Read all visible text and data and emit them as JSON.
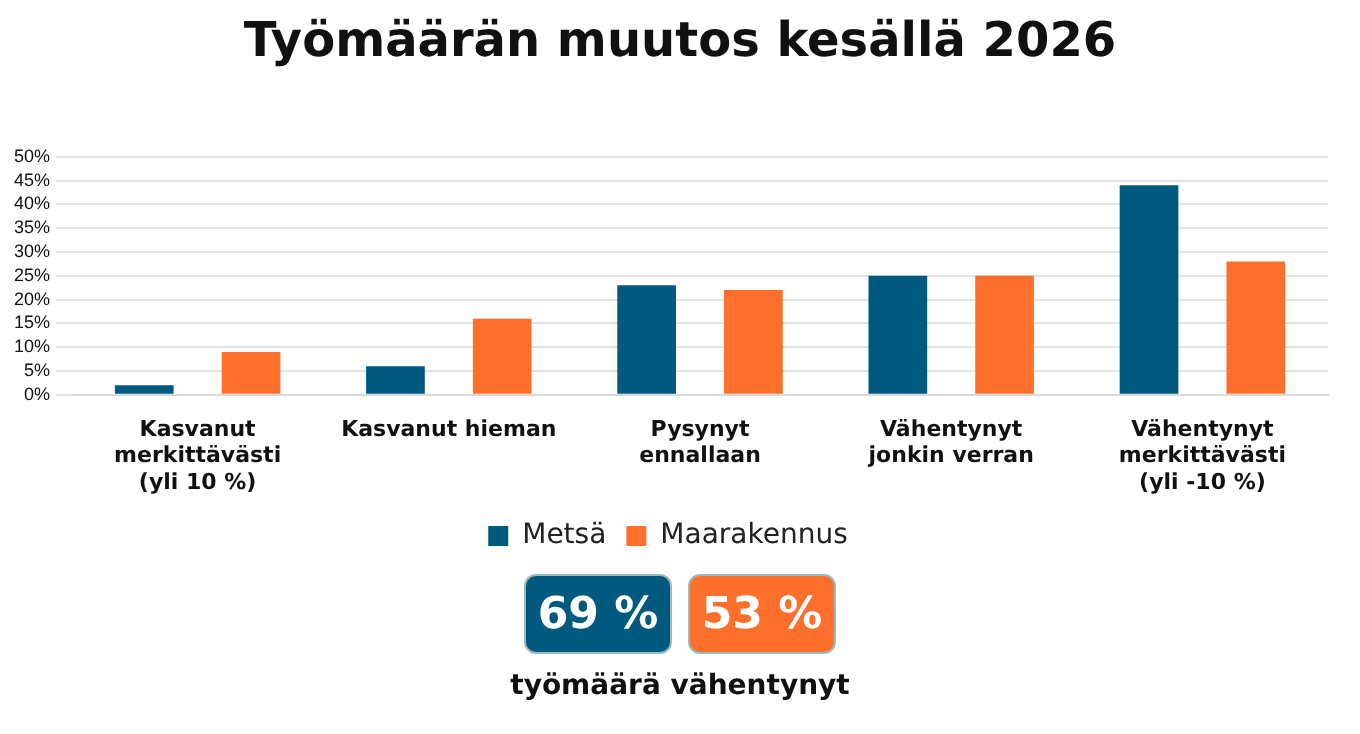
{
  "chart_data": {
    "type": "bar",
    "title": "Työmäärän muutos kesällä 2026",
    "categories": [
      "Kasvanut merkittävästi (yli 10 %)",
      "Kasvanut hieman",
      "Pysynyt ennallaan",
      "Vähentynyt jonkin verran",
      "Vähentynyt merkittävästi (yli -10 %)"
    ],
    "series": [
      {
        "name": "Metsä",
        "color": "#005a80",
        "values": [
          2,
          6,
          23,
          25,
          44
        ]
      },
      {
        "name": "Maarakennus",
        "color": "#ff6f2c",
        "values": [
          9,
          16,
          22,
          25,
          28
        ]
      }
    ],
    "ylim": [
      0,
      50
    ],
    "yticks": [
      {
        "value": 0,
        "label": "0%"
      },
      {
        "value": 5,
        "label": "5%"
      },
      {
        "value": 10,
        "label": "10%"
      },
      {
        "value": 15,
        "label": "15%"
      },
      {
        "value": 20,
        "label": "20%"
      },
      {
        "value": 25,
        "label": "25%"
      },
      {
        "value": 30,
        "label": "30%"
      },
      {
        "value": 35,
        "label": "35%"
      },
      {
        "value": 40,
        "label": "40%"
      },
      {
        "value": 45,
        "label": "45%"
      },
      {
        "value": 50,
        "label": "50%"
      }
    ],
    "grid": "y",
    "legend": "bottom",
    "annotations": [
      "69 %",
      "53 %",
      "työmäärä vähentynyt"
    ]
  }
}
